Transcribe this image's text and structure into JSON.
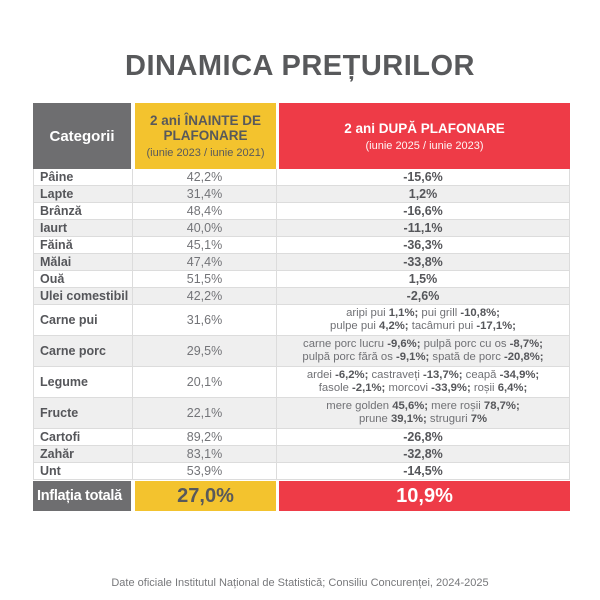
{
  "title": "DINAMICA PREȚURILOR",
  "colors": {
    "accent_yellow": "#F3C32E",
    "accent_red": "#EE3B47",
    "header_gray": "#6E6E70",
    "text_dark": "#58595B",
    "row_stripe": "#EFEFEF"
  },
  "header": {
    "category": "Categorii",
    "before_title": "2 ani ÎNAINTE DE PLAFONARE",
    "before_subtitle": "(iunie 2023 / iunie 2021)",
    "after_title": "2 ani DUPĂ PLAFONARE",
    "after_subtitle": "(iunie 2025 / iunie 2023)"
  },
  "chart_data": {
    "type": "table",
    "title": "DINAMICA PREȚURILOR",
    "columns": [
      "Categorii",
      "2 ani ÎNAINTE DE PLAFONARE (iunie 2023 / iunie 2021)",
      "2 ani DUPĂ PLAFONARE (iunie 2025 / iunie 2023)"
    ],
    "rows": [
      {
        "category": "Pâine",
        "before": "42,2%",
        "after": "-15,6%"
      },
      {
        "category": "Lapte",
        "before": "31,4%",
        "after": "1,2%"
      },
      {
        "category": "Brânză",
        "before": "48,4%",
        "after": "-16,6%"
      },
      {
        "category": "Iaurt",
        "before": "40,0%",
        "after": "-11,1%"
      },
      {
        "category": "Făină",
        "before": "45,1%",
        "after": "-36,3%"
      },
      {
        "category": "Mălai",
        "before": "47,4%",
        "after": "-33,8%"
      },
      {
        "category": "Ouă",
        "before": "51,5%",
        "after": "1,5%"
      },
      {
        "category": "Ulei comestibil",
        "before": "42,2%",
        "after": "-2,6%"
      },
      {
        "category": "Carne pui",
        "before": "31,6%",
        "after": "aripi pui 1,1%; pui grill -10,8%; pulpe pui 4,2%; tacâmuri pui -17,1%;",
        "after_segments": [
          [
            [
              "n",
              "aripi pui "
            ],
            [
              "b",
              "1,1%;"
            ],
            [
              "n",
              " pui grill "
            ],
            [
              "b",
              "-10,8%;"
            ]
          ],
          [
            [
              "n",
              "pulpe pui "
            ],
            [
              "b",
              "4,2%;"
            ],
            [
              "n",
              " tacâmuri pui "
            ],
            [
              "b",
              "-17,1%;"
            ]
          ]
        ]
      },
      {
        "category": "Carne porc",
        "before": "29,5%",
        "after": "carne porc lucru -9,6%; pulpă porc cu os -8,7%; pulpă porc fără os -9,1%; spată de porc -20,8%;",
        "after_segments": [
          [
            [
              "n",
              "carne porc lucru "
            ],
            [
              "b",
              "-9,6%;"
            ],
            [
              "n",
              " pulpă porc cu os "
            ],
            [
              "b",
              "-8,7%;"
            ]
          ],
          [
            [
              "n",
              "pulpă porc fără os "
            ],
            [
              "b",
              "-9,1%;"
            ],
            [
              "n",
              " spată de porc "
            ],
            [
              "b",
              "-20,8%;"
            ]
          ]
        ]
      },
      {
        "category": "Legume",
        "before": "20,1%",
        "after": "ardei -6,2%; castraveți -13,7%; ceapă -34,9%; fasole -2,1%; morcovi -33,9%; roșii 6,4%;",
        "after_segments": [
          [
            [
              "n",
              "ardei "
            ],
            [
              "b",
              "-6,2%;"
            ],
            [
              "n",
              " castraveți "
            ],
            [
              "b",
              "-13,7%;"
            ],
            [
              "n",
              " ceapă "
            ],
            [
              "b",
              "-34,9%;"
            ]
          ],
          [
            [
              "n",
              "fasole "
            ],
            [
              "b",
              "-2,1%;"
            ],
            [
              "n",
              " morcovi "
            ],
            [
              "b",
              "-33,9%;"
            ],
            [
              "n",
              " roșii "
            ],
            [
              "b",
              "6,4%;"
            ]
          ]
        ]
      },
      {
        "category": "Fructe",
        "before": "22,1%",
        "after": "mere golden 45,6%; mere roșii 78,7%; prune 39,1%; struguri 7%",
        "after_segments": [
          [
            [
              "n",
              "mere golden "
            ],
            [
              "b",
              "45,6%;"
            ],
            [
              "n",
              " mere roșii "
            ],
            [
              "b",
              "78,7%;"
            ]
          ],
          [
            [
              "n",
              "prune "
            ],
            [
              "b",
              "39,1%;"
            ],
            [
              "n",
              " struguri "
            ],
            [
              "b",
              "7%"
            ]
          ]
        ]
      },
      {
        "category": "Cartofi",
        "before": "89,2%",
        "after": "-26,8%"
      },
      {
        "category": "Zahăr",
        "before": "83,1%",
        "after": "-32,8%"
      },
      {
        "category": "Unt",
        "before": "53,9%",
        "after": "-14,5%"
      }
    ],
    "total": {
      "category": "Inflația totală",
      "before": "27,0%",
      "after": "10,9%"
    }
  },
  "footer_note": "Date oficiale Institutul Național de Statistică; Consiliu Concurenței, 2024-2025"
}
